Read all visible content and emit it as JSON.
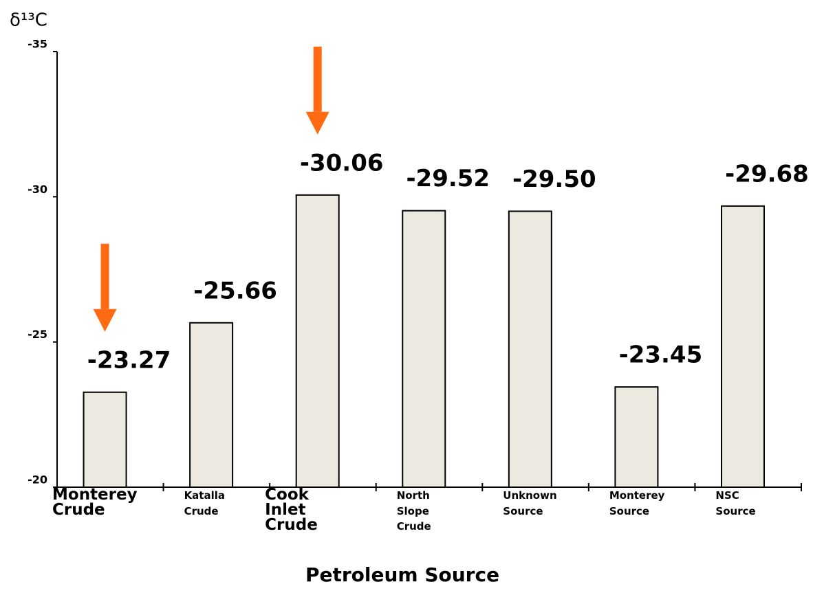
{
  "chart_data": {
    "type": "bar",
    "y_label": "δ¹³C",
    "x_label": "Petroleum Source",
    "categories": [
      "Monterey Crude",
      "Katalla Crude",
      "Cook Inlet Crude",
      "North Slope Crude",
      "Unknown Source",
      "Monterey Source",
      "NSC Source"
    ],
    "values": [
      -23.27,
      -25.66,
      -30.06,
      -29.52,
      -29.5,
      -23.45,
      -29.68
    ],
    "value_labels": [
      "-23.27",
      "-25.66",
      "-30.06",
      "-29.52",
      "-29.50",
      "-23.45",
      "-29.68"
    ],
    "color": "#ece9e0",
    "highlight": [
      0,
      2
    ],
    "highlight_color": "#ff6a13",
    "ylim": [
      -20,
      -35
    ],
    "yticks": [
      -35,
      -30,
      -25,
      -20
    ]
  }
}
